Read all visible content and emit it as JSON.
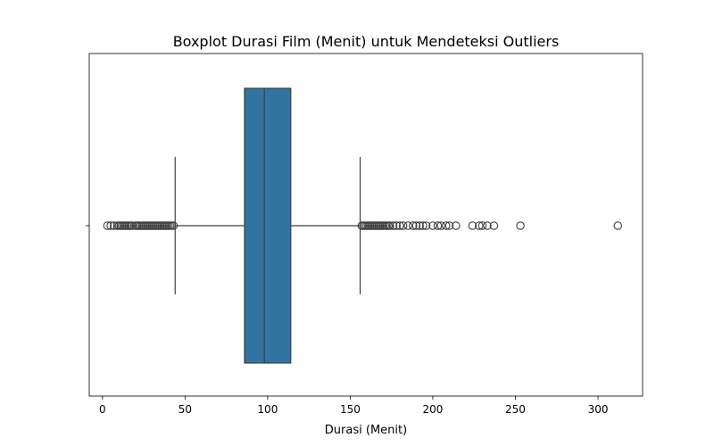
{
  "chart_data": {
    "type": "boxplot",
    "title": "Boxplot Durasi Film (Menit) untuk Mendeteksi Outliers",
    "xlabel": "Durasi (Menit)",
    "ylabel": "",
    "xlim": [
      -8,
      327
    ],
    "x_ticks": [
      0,
      50,
      100,
      150,
      200,
      250,
      300
    ],
    "x_tick_labels": [
      "0",
      "50",
      "100",
      "150",
      "200",
      "250",
      "300"
    ],
    "orientation": "horizontal",
    "grid": false,
    "color": "#3274a1",
    "line_color": "#3f3f3f",
    "box": {
      "whisker_low": 44,
      "q1": 86,
      "median": 98,
      "q3": 114,
      "whisker_high": 156
    },
    "outliers": [
      3,
      5,
      7,
      9,
      10,
      11,
      12,
      13,
      14,
      15,
      16,
      17,
      18,
      20,
      21,
      22,
      23,
      24,
      25,
      26,
      27,
      28,
      29,
      30,
      31,
      32,
      33,
      34,
      35,
      36,
      37,
      38,
      39,
      40,
      41,
      42,
      43,
      157,
      158,
      159,
      160,
      161,
      162,
      163,
      164,
      165,
      166,
      167,
      168,
      169,
      170,
      171,
      172,
      173,
      174,
      176,
      178,
      180,
      182,
      185,
      188,
      190,
      192,
      194,
      196,
      200,
      203,
      205,
      208,
      210,
      214,
      224,
      228,
      230,
      233,
      237,
      253,
      312
    ]
  }
}
